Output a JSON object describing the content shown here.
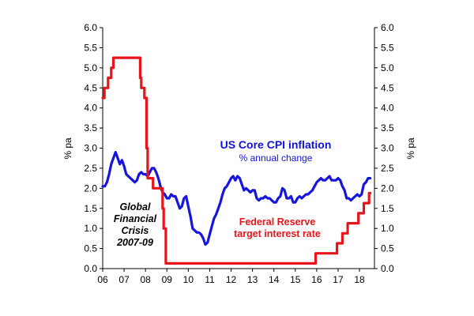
{
  "chart_data": {
    "type": "line",
    "title": "",
    "xlabel": "",
    "ylabel_left": "% pa",
    "ylabel_right": "% pa",
    "ylim": [
      0,
      6
    ],
    "xlim": [
      2006,
      2018.7
    ],
    "y_ticks": [
      "0.0",
      "0.5",
      "1.0",
      "1.5",
      "2.0",
      "2.5",
      "3.0",
      "3.5",
      "4.0",
      "4.5",
      "5.0",
      "5.5",
      "6.0"
    ],
    "x_ticks": [
      {
        "label": "06",
        "x": 2006
      },
      {
        "label": "07",
        "x": 2007
      },
      {
        "label": "08",
        "x": 2008
      },
      {
        "label": "09",
        "x": 2009
      },
      {
        "label": "10",
        "x": 2010
      },
      {
        "label": "11",
        "x": 2011
      },
      {
        "label": "12",
        "x": 2012
      },
      {
        "label": "13",
        "x": 2013
      },
      {
        "label": "14",
        "x": 2014
      },
      {
        "label": "15",
        "x": 2015
      },
      {
        "label": "16",
        "x": 2016
      },
      {
        "label": "17",
        "x": 2017
      },
      {
        "label": "18",
        "x": 2018
      }
    ],
    "grid": false,
    "series": [
      {
        "name": "US Core CPI inflation",
        "subtitle": "% annual change",
        "color": "#1515dd",
        "points": [
          [
            2006.0,
            2.05
          ],
          [
            2006.1,
            2.05
          ],
          [
            2006.2,
            2.15
          ],
          [
            2006.3,
            2.35
          ],
          [
            2006.4,
            2.6
          ],
          [
            2006.5,
            2.75
          ],
          [
            2006.6,
            2.9
          ],
          [
            2006.7,
            2.75
          ],
          [
            2006.8,
            2.6
          ],
          [
            2006.9,
            2.7
          ],
          [
            2007.0,
            2.55
          ],
          [
            2007.1,
            2.35
          ],
          [
            2007.2,
            2.3
          ],
          [
            2007.3,
            2.25
          ],
          [
            2007.4,
            2.2
          ],
          [
            2007.5,
            2.15
          ],
          [
            2007.6,
            2.2
          ],
          [
            2007.7,
            2.35
          ],
          [
            2007.8,
            2.4
          ],
          [
            2007.9,
            2.35
          ],
          [
            2008.0,
            2.35
          ],
          [
            2008.1,
            2.3
          ],
          [
            2008.2,
            2.4
          ],
          [
            2008.3,
            2.5
          ],
          [
            2008.4,
            2.5
          ],
          [
            2008.5,
            2.4
          ],
          [
            2008.6,
            2.25
          ],
          [
            2008.7,
            2.05
          ],
          [
            2008.8,
            1.9
          ],
          [
            2008.9,
            1.85
          ],
          [
            2009.0,
            1.75
          ],
          [
            2009.1,
            1.75
          ],
          [
            2009.2,
            1.85
          ],
          [
            2009.3,
            1.8
          ],
          [
            2009.4,
            1.8
          ],
          [
            2009.5,
            1.65
          ],
          [
            2009.6,
            1.5
          ],
          [
            2009.7,
            1.55
          ],
          [
            2009.8,
            1.75
          ],
          [
            2009.9,
            1.8
          ],
          [
            2010.0,
            1.55
          ],
          [
            2010.1,
            1.3
          ],
          [
            2010.2,
            1.0
          ],
          [
            2010.3,
            0.95
          ],
          [
            2010.4,
            0.9
          ],
          [
            2010.5,
            0.9
          ],
          [
            2010.6,
            0.85
          ],
          [
            2010.7,
            0.75
          ],
          [
            2010.8,
            0.6
          ],
          [
            2010.9,
            0.65
          ],
          [
            2011.0,
            0.85
          ],
          [
            2011.1,
            1.05
          ],
          [
            2011.2,
            1.25
          ],
          [
            2011.3,
            1.35
          ],
          [
            2011.4,
            1.5
          ],
          [
            2011.5,
            1.65
          ],
          [
            2011.6,
            1.85
          ],
          [
            2011.7,
            2.0
          ],
          [
            2011.8,
            2.05
          ],
          [
            2011.9,
            2.15
          ],
          [
            2012.0,
            2.25
          ],
          [
            2012.1,
            2.3
          ],
          [
            2012.2,
            2.2
          ],
          [
            2012.3,
            2.3
          ],
          [
            2012.4,
            2.25
          ],
          [
            2012.5,
            2.1
          ],
          [
            2012.6,
            1.95
          ],
          [
            2012.7,
            2.0
          ],
          [
            2012.8,
            1.95
          ],
          [
            2012.9,
            1.9
          ],
          [
            2013.0,
            1.95
          ],
          [
            2013.1,
            1.95
          ],
          [
            2013.2,
            1.75
          ],
          [
            2013.3,
            1.7
          ],
          [
            2013.4,
            1.75
          ],
          [
            2013.5,
            1.75
          ],
          [
            2013.6,
            1.8
          ],
          [
            2013.7,
            1.75
          ],
          [
            2013.8,
            1.75
          ],
          [
            2013.9,
            1.7
          ],
          [
            2014.0,
            1.65
          ],
          [
            2014.1,
            1.65
          ],
          [
            2014.2,
            1.75
          ],
          [
            2014.3,
            1.8
          ],
          [
            2014.4,
            2.0
          ],
          [
            2014.5,
            1.95
          ],
          [
            2014.6,
            1.75
          ],
          [
            2014.7,
            1.75
          ],
          [
            2014.8,
            1.8
          ],
          [
            2014.9,
            1.65
          ],
          [
            2015.0,
            1.65
          ],
          [
            2015.1,
            1.75
          ],
          [
            2015.2,
            1.8
          ],
          [
            2015.3,
            1.75
          ],
          [
            2015.4,
            1.8
          ],
          [
            2015.5,
            1.85
          ],
          [
            2015.6,
            1.85
          ],
          [
            2015.7,
            1.9
          ],
          [
            2015.8,
            1.95
          ],
          [
            2015.9,
            2.05
          ],
          [
            2016.0,
            2.15
          ],
          [
            2016.1,
            2.2
          ],
          [
            2016.2,
            2.25
          ],
          [
            2016.3,
            2.2
          ],
          [
            2016.4,
            2.2
          ],
          [
            2016.5,
            2.25
          ],
          [
            2016.6,
            2.3
          ],
          [
            2016.7,
            2.2
          ],
          [
            2016.8,
            2.2
          ],
          [
            2016.9,
            2.2
          ],
          [
            2017.0,
            2.25
          ],
          [
            2017.1,
            2.2
          ],
          [
            2017.2,
            2.05
          ],
          [
            2017.3,
            1.95
          ],
          [
            2017.4,
            1.75
          ],
          [
            2017.5,
            1.75
          ],
          [
            2017.6,
            1.7
          ],
          [
            2017.7,
            1.75
          ],
          [
            2017.8,
            1.8
          ],
          [
            2017.9,
            1.85
          ],
          [
            2018.0,
            1.8
          ],
          [
            2018.1,
            1.85
          ],
          [
            2018.2,
            2.1
          ],
          [
            2018.3,
            2.15
          ],
          [
            2018.4,
            2.25
          ],
          [
            2018.5,
            2.25
          ]
        ]
      },
      {
        "name": "Federal Reserve target interest rate",
        "color": "#e8141b",
        "step": true,
        "points": [
          [
            2006.0,
            4.25
          ],
          [
            2006.08,
            4.5
          ],
          [
            2006.25,
            4.75
          ],
          [
            2006.4,
            5.0
          ],
          [
            2006.5,
            5.25
          ],
          [
            2007.7,
            5.25
          ],
          [
            2007.75,
            4.75
          ],
          [
            2007.8,
            4.5
          ],
          [
            2007.95,
            4.25
          ],
          [
            2008.05,
            3.0
          ],
          [
            2008.1,
            2.25
          ],
          [
            2008.35,
            2.0
          ],
          [
            2008.8,
            1.5
          ],
          [
            2008.85,
            1.0
          ],
          [
            2008.95,
            0.13
          ],
          [
            2015.95,
            0.38
          ],
          [
            2016.95,
            0.63
          ],
          [
            2017.2,
            0.88
          ],
          [
            2017.45,
            1.13
          ],
          [
            2017.95,
            1.38
          ],
          [
            2018.2,
            1.63
          ],
          [
            2018.45,
            1.88
          ],
          [
            2018.5,
            1.88
          ]
        ]
      }
    ],
    "annotations": {
      "cpi_title": "US Core CPI inflation",
      "cpi_subtitle": "% annual change",
      "fed_line1": "Federal Reserve",
      "fed_line2": "target interest rate",
      "gfc_line1": "Global",
      "gfc_line2": "Financial",
      "gfc_line3": "Crisis",
      "gfc_line4": "2007-09"
    }
  }
}
